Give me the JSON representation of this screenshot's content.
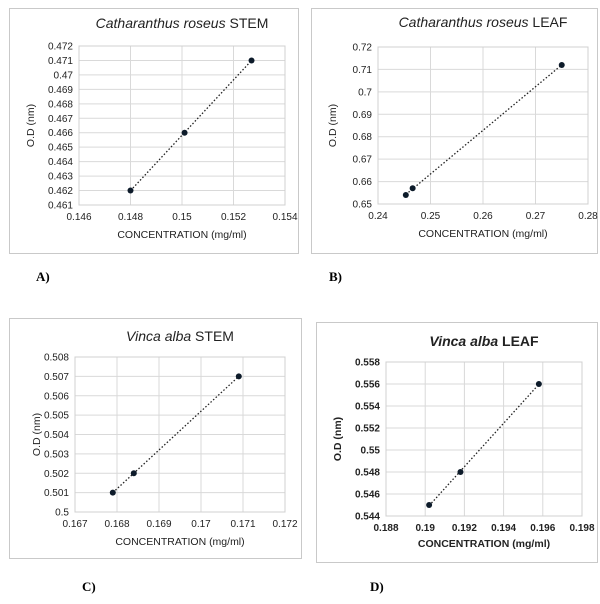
{
  "panel_labels": [
    "A)",
    "B)",
    "C)",
    "D)"
  ],
  "chart_data": [
    {
      "type": "scatter",
      "title_italic": "Catharanthus roseus",
      "title_rest": " STEM",
      "bold_title": false,
      "xlabel": "CONCENTRATION (mg/ml)",
      "ylabel": "O.D (nm)",
      "xlim": [
        0.146,
        0.154
      ],
      "ylim": [
        0.461,
        0.472
      ],
      "xticks": [
        "0.146",
        "0.148",
        "0.15",
        "0.152",
        "0.154"
      ],
      "yticks": [
        "0.461",
        "0.462",
        "0.463",
        "0.464",
        "0.465",
        "0.466",
        "0.467",
        "0.468",
        "0.469",
        "0.47",
        "0.471",
        "0.472"
      ],
      "grid": true,
      "trendline": "dotted linear",
      "points": [
        {
          "x": 0.148,
          "y": 0.462
        },
        {
          "x": 0.1501,
          "y": 0.466
        },
        {
          "x": 0.1527,
          "y": 0.471
        }
      ]
    },
    {
      "type": "scatter",
      "title_italic": "Catharanthus roseus",
      "title_rest": " LEAF",
      "bold_title": false,
      "xlabel": "CONCENTRATION (mg/ml)",
      "ylabel": "O.D (nm)",
      "xlim": [
        0.24,
        0.28
      ],
      "ylim": [
        0.65,
        0.72
      ],
      "xticks": [
        "0.24",
        "0.25",
        "0.26",
        "0.27",
        "0.28"
      ],
      "yticks": [
        "0.65",
        "0.66",
        "0.67",
        "0.68",
        "0.69",
        "0.7",
        "0.71",
        "0.72"
      ],
      "grid": true,
      "trendline": "dotted linear",
      "points": [
        {
          "x": 0.2453,
          "y": 0.654
        },
        {
          "x": 0.2466,
          "y": 0.657
        },
        {
          "x": 0.275,
          "y": 0.712
        }
      ]
    },
    {
      "type": "scatter",
      "title_italic": "Vinca alba",
      "title_rest": " STEM",
      "bold_title": false,
      "xlabel": "CONCENTRATION (mg/ml)",
      "ylabel": "O.D (nm)",
      "xlim": [
        0.167,
        0.172
      ],
      "ylim": [
        0.5,
        0.508
      ],
      "xticks": [
        "0.167",
        "0.168",
        "0.169",
        "0.17",
        "0.171",
        "0.172"
      ],
      "yticks": [
        "0.5",
        "0.501",
        "0.502",
        "0.503",
        "0.504",
        "0.505",
        "0.506",
        "0.507",
        "0.508"
      ],
      "grid": true,
      "trendline": "dotted linear",
      "points": [
        {
          "x": 0.1679,
          "y": 0.501
        },
        {
          "x": 0.1684,
          "y": 0.502
        },
        {
          "x": 0.1709,
          "y": 0.507
        }
      ]
    },
    {
      "type": "scatter",
      "title_italic": "Vinca alba",
      "title_rest": " LEAF",
      "bold_title": true,
      "xlabel": "CONCENTRATION (mg/ml)",
      "ylabel": "O.D (nm)",
      "xlim": [
        0.188,
        0.198
      ],
      "ylim": [
        0.544,
        0.558
      ],
      "xticks": [
        "0.188",
        "0.19",
        "0.192",
        "0.194",
        "0.196",
        "0.198"
      ],
      "yticks": [
        "0.544",
        "0.546",
        "0.548",
        "0.55",
        "0.552",
        "0.554",
        "0.556",
        "0.558"
      ],
      "grid": true,
      "trendline": "dotted linear",
      "points": [
        {
          "x": 0.1902,
          "y": 0.545
        },
        {
          "x": 0.1918,
          "y": 0.548
        },
        {
          "x": 0.1958,
          "y": 0.556
        }
      ]
    }
  ]
}
